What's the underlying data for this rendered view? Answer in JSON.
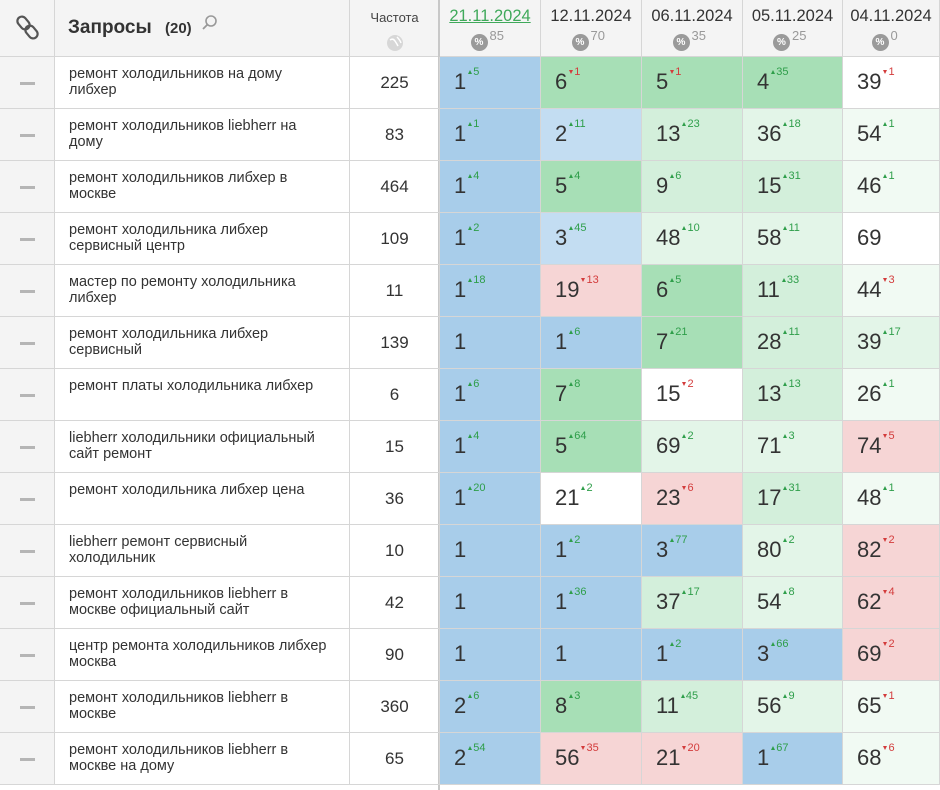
{
  "header": {
    "query_title": "Запросы",
    "query_count": "(20)",
    "freq_title": "Частота",
    "percent_icon": "%",
    "dates": [
      {
        "date": "21.11.2024",
        "percent": 85,
        "color": "#3fa95a",
        "link": true
      },
      {
        "date": "12.11.2024",
        "percent": 70,
        "color": "#333333",
        "link": false
      },
      {
        "date": "06.11.2024",
        "percent": 35,
        "color": "#333333",
        "link": false
      },
      {
        "date": "05.11.2024",
        "percent": 25,
        "color": "#333333",
        "link": false
      },
      {
        "date": "04.11.2024",
        "percent": 0,
        "color": "#333333",
        "link": false
      }
    ]
  },
  "rows": [
    {
      "query": "ремонт холодильников на дому либхер",
      "freq": 225,
      "cells": [
        {
          "pos": 1,
          "change": 5,
          "trend": "up",
          "bg": "#a8cdea"
        },
        {
          "pos": 6,
          "change": 1,
          "trend": "down",
          "bg": "#a7dfb6"
        },
        {
          "pos": 5,
          "change": 1,
          "trend": "down",
          "bg": "#a7dfb6"
        },
        {
          "pos": 4,
          "change": 35,
          "trend": "up",
          "bg": "#a7dfb6"
        },
        {
          "pos": 39,
          "change": 1,
          "trend": "down",
          "bg": "#ffffff"
        }
      ]
    },
    {
      "query": "ремонт холодильников liebherr на дому",
      "freq": 83,
      "cells": [
        {
          "pos": 1,
          "change": 1,
          "trend": "up",
          "bg": "#a8cdea"
        },
        {
          "pos": 2,
          "change": 11,
          "trend": "up",
          "bg": "#c3ddf2"
        },
        {
          "pos": 13,
          "change": 23,
          "trend": "up",
          "bg": "#d3efdb"
        },
        {
          "pos": 36,
          "change": 18,
          "trend": "up",
          "bg": "#e3f5e8"
        },
        {
          "pos": 54,
          "change": 1,
          "trend": "up",
          "bg": "#f1faf3"
        }
      ]
    },
    {
      "query": "ремонт холодильников либхер в москве",
      "freq": 464,
      "cells": [
        {
          "pos": 1,
          "change": 4,
          "trend": "up",
          "bg": "#a8cdea"
        },
        {
          "pos": 5,
          "change": 4,
          "trend": "up",
          "bg": "#a7dfb6"
        },
        {
          "pos": 9,
          "change": 6,
          "trend": "up",
          "bg": "#d3efdb"
        },
        {
          "pos": 15,
          "change": 31,
          "trend": "up",
          "bg": "#d3efdb"
        },
        {
          "pos": 46,
          "change": 1,
          "trend": "up",
          "bg": "#f1faf3"
        }
      ]
    },
    {
      "query": "ремонт холодильника либхер сервисный центр",
      "freq": 109,
      "cells": [
        {
          "pos": 1,
          "change": 2,
          "trend": "up",
          "bg": "#a8cdea"
        },
        {
          "pos": 3,
          "change": 45,
          "trend": "up",
          "bg": "#c3ddf2"
        },
        {
          "pos": 48,
          "change": 10,
          "trend": "up",
          "bg": "#e3f5e8"
        },
        {
          "pos": 58,
          "change": 11,
          "trend": "up",
          "bg": "#e3f5e8"
        },
        {
          "pos": 69,
          "change": null,
          "trend": null,
          "bg": "#ffffff"
        }
      ]
    },
    {
      "query": "мастер по ремонту холодильника либхер",
      "freq": 11,
      "cells": [
        {
          "pos": 1,
          "change": 18,
          "trend": "up",
          "bg": "#a8cdea"
        },
        {
          "pos": 19,
          "change": 13,
          "trend": "down",
          "bg": "#f6d5d5"
        },
        {
          "pos": 6,
          "change": 5,
          "trend": "up",
          "bg": "#a7dfb6"
        },
        {
          "pos": 11,
          "change": 33,
          "trend": "up",
          "bg": "#d3efdb"
        },
        {
          "pos": 44,
          "change": 3,
          "trend": "down",
          "bg": "#f1faf3"
        }
      ]
    },
    {
      "query": "ремонт холодильника либхер сервисный",
      "freq": 139,
      "cells": [
        {
          "pos": 1,
          "change": null,
          "trend": null,
          "bg": "#a8cdea"
        },
        {
          "pos": 1,
          "change": 6,
          "trend": "up",
          "bg": "#a8cdea"
        },
        {
          "pos": 7,
          "change": 21,
          "trend": "up",
          "bg": "#a7dfb6"
        },
        {
          "pos": 28,
          "change": 11,
          "trend": "up",
          "bg": "#d3efdb"
        },
        {
          "pos": 39,
          "change": 17,
          "trend": "up",
          "bg": "#e3f5e8"
        }
      ]
    },
    {
      "query": "ремонт платы холодильника либхер",
      "freq": 6,
      "cells": [
        {
          "pos": 1,
          "change": 6,
          "trend": "up",
          "bg": "#a8cdea"
        },
        {
          "pos": 7,
          "change": 8,
          "trend": "up",
          "bg": "#a7dfb6"
        },
        {
          "pos": 15,
          "change": 2,
          "trend": "down",
          "bg": "#ffffff"
        },
        {
          "pos": 13,
          "change": 13,
          "trend": "up",
          "bg": "#d3efdb"
        },
        {
          "pos": 26,
          "change": 1,
          "trend": "up",
          "bg": "#f1faf3"
        }
      ]
    },
    {
      "query": "liebherr холодильники официальный сайт ремонт",
      "freq": 15,
      "cells": [
        {
          "pos": 1,
          "change": 4,
          "trend": "up",
          "bg": "#a8cdea"
        },
        {
          "pos": 5,
          "change": 64,
          "trend": "up",
          "bg": "#a7dfb6"
        },
        {
          "pos": 69,
          "change": 2,
          "trend": "up",
          "bg": "#e3f5e8"
        },
        {
          "pos": 71,
          "change": 3,
          "trend": "up",
          "bg": "#e3f5e8"
        },
        {
          "pos": 74,
          "change": 5,
          "trend": "down",
          "bg": "#f6d5d5"
        }
      ]
    },
    {
      "query": "ремонт холодильника либхер цена",
      "freq": 36,
      "cells": [
        {
          "pos": 1,
          "change": 20,
          "trend": "up",
          "bg": "#a8cdea"
        },
        {
          "pos": 21,
          "change": 2,
          "trend": "up",
          "bg": "#ffffff"
        },
        {
          "pos": 23,
          "change": 6,
          "trend": "down",
          "bg": "#f6d5d5"
        },
        {
          "pos": 17,
          "change": 31,
          "trend": "up",
          "bg": "#d3efdb"
        },
        {
          "pos": 48,
          "change": 1,
          "trend": "up",
          "bg": "#f1faf3"
        }
      ]
    },
    {
      "query": "liebherr ремонт сервисный холодильник",
      "freq": 10,
      "cells": [
        {
          "pos": 1,
          "change": null,
          "trend": null,
          "bg": "#a8cdea"
        },
        {
          "pos": 1,
          "change": 2,
          "trend": "up",
          "bg": "#a8cdea"
        },
        {
          "pos": 3,
          "change": 77,
          "trend": "up",
          "bg": "#a8cdea"
        },
        {
          "pos": 80,
          "change": 2,
          "trend": "up",
          "bg": "#e3f5e8"
        },
        {
          "pos": 82,
          "change": 2,
          "trend": "down",
          "bg": "#f6d5d5"
        }
      ]
    },
    {
      "query": "ремонт холодильников liebherr в москве официальный сайт",
      "freq": 42,
      "cells": [
        {
          "pos": 1,
          "change": null,
          "trend": null,
          "bg": "#a8cdea"
        },
        {
          "pos": 1,
          "change": 36,
          "trend": "up",
          "bg": "#a8cdea"
        },
        {
          "pos": 37,
          "change": 17,
          "trend": "up",
          "bg": "#d3efdb"
        },
        {
          "pos": 54,
          "change": 8,
          "trend": "up",
          "bg": "#e3f5e8"
        },
        {
          "pos": 62,
          "change": 4,
          "trend": "down",
          "bg": "#f6d5d5"
        }
      ]
    },
    {
      "query": "центр ремонта холодильников либхер москва",
      "freq": 90,
      "cells": [
        {
          "pos": 1,
          "change": null,
          "trend": null,
          "bg": "#a8cdea"
        },
        {
          "pos": 1,
          "change": null,
          "trend": null,
          "bg": "#a8cdea"
        },
        {
          "pos": 1,
          "change": 2,
          "trend": "up",
          "bg": "#a8cdea"
        },
        {
          "pos": 3,
          "change": 66,
          "trend": "up",
          "bg": "#a8cdea"
        },
        {
          "pos": 69,
          "change": 2,
          "trend": "down",
          "bg": "#f6d5d5"
        }
      ]
    },
    {
      "query": "ремонт холодильников liebherr в москве",
      "freq": 360,
      "cells": [
        {
          "pos": 2,
          "change": 6,
          "trend": "up",
          "bg": "#a8cdea"
        },
        {
          "pos": 8,
          "change": 3,
          "trend": "up",
          "bg": "#a7dfb6"
        },
        {
          "pos": 11,
          "change": 45,
          "trend": "up",
          "bg": "#d3efdb"
        },
        {
          "pos": 56,
          "change": 9,
          "trend": "up",
          "bg": "#e3f5e8"
        },
        {
          "pos": 65,
          "change": 1,
          "trend": "down",
          "bg": "#f1faf3"
        }
      ]
    },
    {
      "query": "ремонт холодильников liebherr в москве на дому",
      "freq": 65,
      "cells": [
        {
          "pos": 2,
          "change": 54,
          "trend": "up",
          "bg": "#a8cdea"
        },
        {
          "pos": 56,
          "change": 35,
          "trend": "down",
          "bg": "#f6d5d5"
        },
        {
          "pos": 21,
          "change": 20,
          "trend": "down",
          "bg": "#f6d5d5"
        },
        {
          "pos": 1,
          "change": 67,
          "trend": "up",
          "bg": "#a8cdea"
        },
        {
          "pos": 68,
          "change": 6,
          "trend": "down",
          "bg": "#f1faf3"
        }
      ]
    }
  ]
}
